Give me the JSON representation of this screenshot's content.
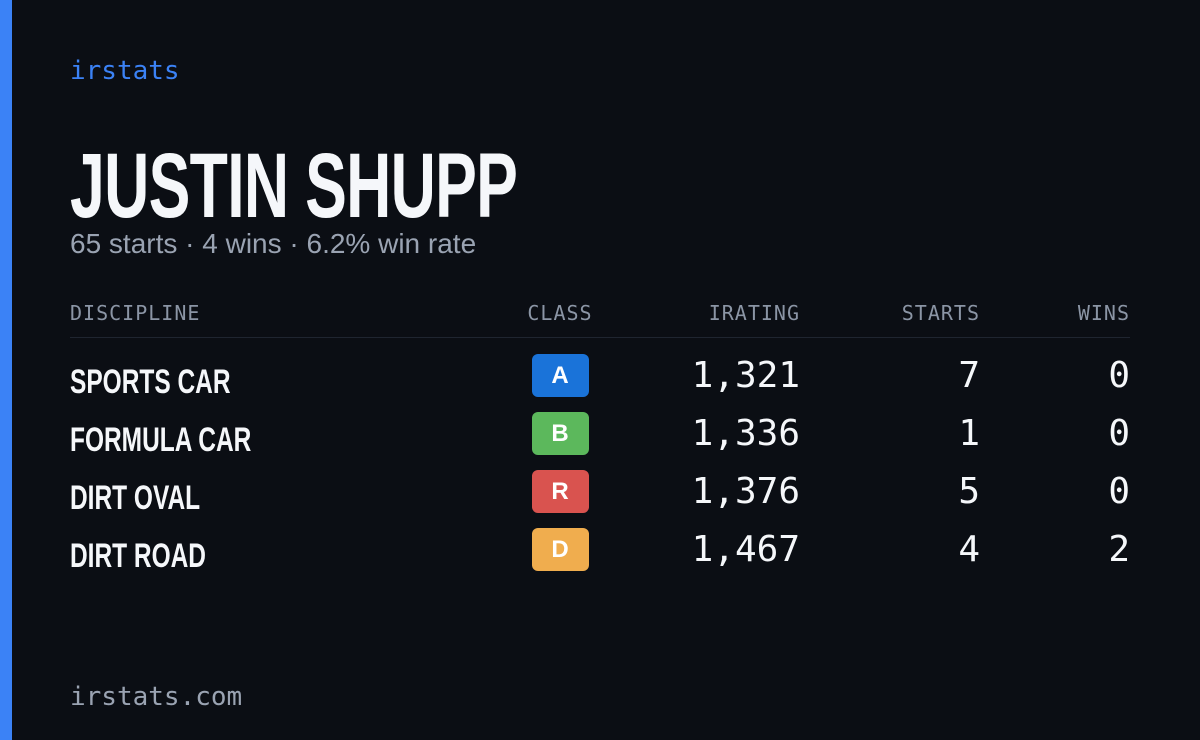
{
  "brand": "irstats",
  "driver": {
    "name": "JUSTIN SHUPP",
    "summary": "65 starts · 4 wins · 6.2% win rate"
  },
  "table": {
    "headers": [
      "DISCIPLINE",
      "CLASS",
      "IRATING",
      "STARTS",
      "WINS"
    ],
    "rows": [
      {
        "discipline": "SPORTS CAR",
        "class": "A",
        "class_color": "#1a73d9",
        "irating": "1,321",
        "starts": "7",
        "wins": "0"
      },
      {
        "discipline": "FORMULA CAR",
        "class": "B",
        "class_color": "#5cb85c",
        "irating": "1,336",
        "starts": "1",
        "wins": "0"
      },
      {
        "discipline": "DIRT OVAL",
        "class": "R",
        "class_color": "#d9534f",
        "irating": "1,376",
        "starts": "5",
        "wins": "0"
      },
      {
        "discipline": "DIRT ROAD",
        "class": "D",
        "class_color": "#f0ad4e",
        "irating": "1,467",
        "starts": "4",
        "wins": "2"
      }
    ]
  },
  "footer": "irstats.com"
}
